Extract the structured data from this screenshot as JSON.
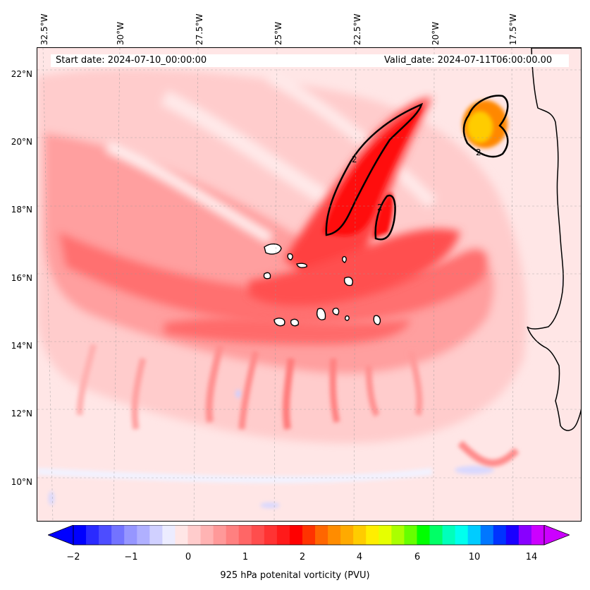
{
  "header": {
    "start_date": "Start date: 2024-07-10_00:00:00",
    "valid_date": "Valid_date: 2024-07-11T06:00:00.00"
  },
  "map": {
    "lon_labels": [
      "32.5°W",
      "30°W",
      "27.5°W",
      "25°W",
      "22.5°W",
      "20°W",
      "17.5°W"
    ],
    "lat_labels": [
      "22°N",
      "20°N",
      "18°N",
      "16°N",
      "14°N",
      "12°N",
      "10°N"
    ],
    "contour_label": "2",
    "colors": {
      "background": "#ffe6e6",
      "light_pink": "#ffcccc",
      "pink": "#ff9999",
      "red_medium": "#ff6666",
      "red": "#ff2020",
      "orange": "#ff8800",
      "yellow": "#ffcc00",
      "blue_pale": "#e8e8ff",
      "coastline": "#000000"
    }
  },
  "colorbar": {
    "tick_labels": [
      "−2",
      "−1",
      "0",
      "1",
      "2",
      "4",
      "6",
      "10",
      "14"
    ],
    "label": "925 hPa potenital vorticity (PVU)",
    "colors": [
      "#0000ff",
      "#2a2aff",
      "#4d4dff",
      "#7373ff",
      "#9696ff",
      "#b0b0ff",
      "#d0d0ff",
      "#ececff",
      "#ffe6e6",
      "#ffcccc",
      "#ffb3b3",
      "#ff9999",
      "#ff8080",
      "#ff6666",
      "#ff4d4d",
      "#ff3333",
      "#ff1a1a",
      "#ff0000",
      "#ff3300",
      "#ff6600",
      "#ff8c00",
      "#ffaa00",
      "#ffcc00",
      "#ffee00",
      "#e6ff00",
      "#aaff00",
      "#66ff00",
      "#00ff00",
      "#00ff66",
      "#00ffbb",
      "#00ffee",
      "#00ccff",
      "#0077ff",
      "#0033ff",
      "#1a00ff",
      "#8800ff",
      "#cc00ff"
    ],
    "extend_low_color": "#0000ff",
    "extend_high_color": "#cc00ff"
  }
}
